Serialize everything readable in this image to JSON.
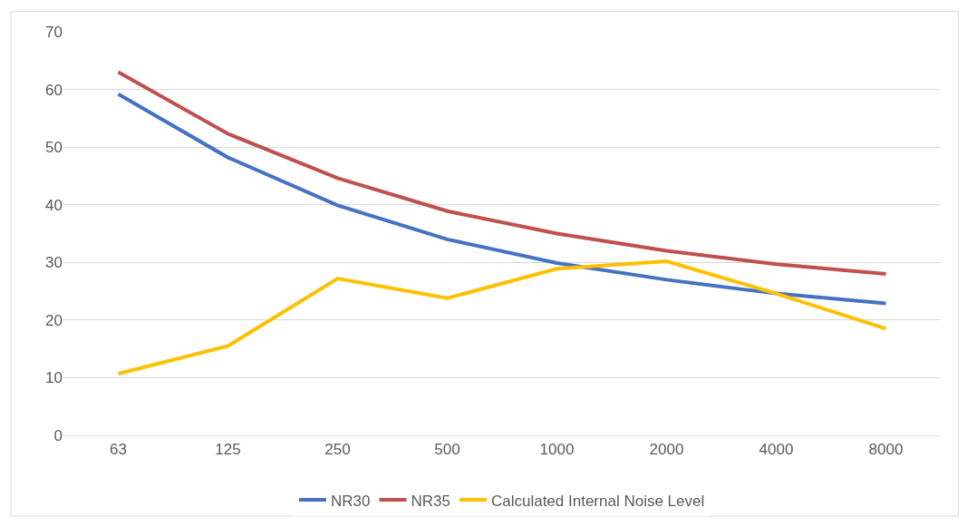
{
  "chart_data": {
    "type": "line",
    "categories": [
      "63",
      "125",
      "250",
      "500",
      "1000",
      "2000",
      "4000",
      "8000"
    ],
    "series": [
      {
        "name": "NR30",
        "color": "#4472c4",
        "values": [
          59.2,
          48.2,
          39.9,
          34.0,
          29.9,
          27.0,
          24.6,
          22.9
        ]
      },
      {
        "name": "NR35",
        "color": "#c0504d",
        "values": [
          63.0,
          52.3,
          44.6,
          38.9,
          35.0,
          32.0,
          29.7,
          28.0
        ]
      },
      {
        "name": "Calculated Internal Noise Level",
        "color": "#ffc000",
        "values": [
          10.7,
          15.5,
          27.2,
          23.8,
          28.9,
          30.2,
          24.6,
          18.5
        ]
      }
    ],
    "ylim": [
      0,
      70
    ],
    "yticks": [
      0,
      10,
      20,
      30,
      40,
      50,
      60,
      70
    ],
    "grid": "y",
    "legend": "bottom",
    "marker": "none",
    "line_style": "solid"
  }
}
